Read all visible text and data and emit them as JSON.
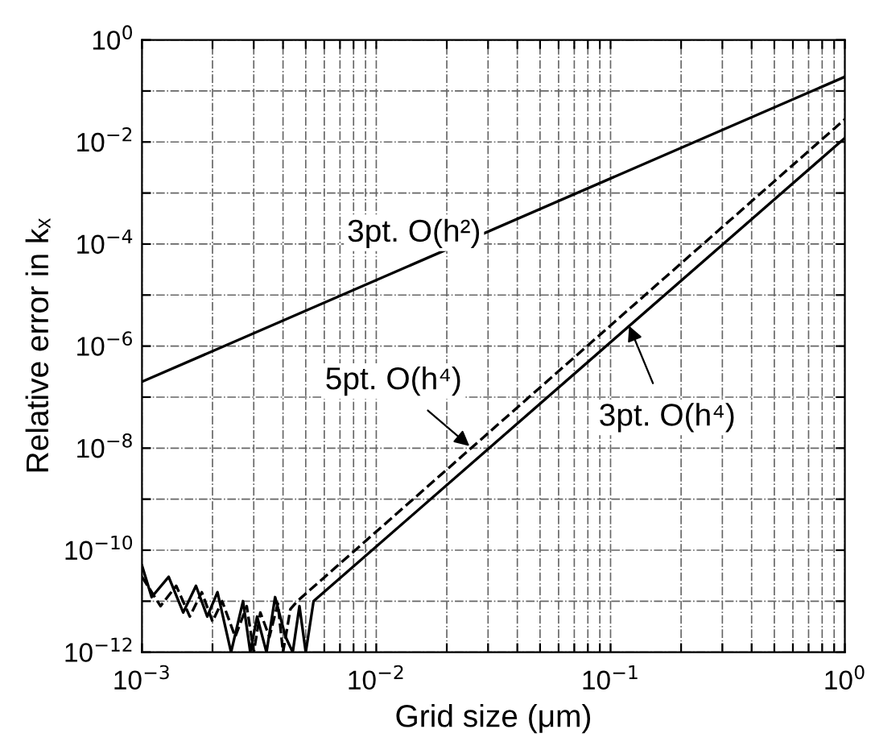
{
  "chart_data": {
    "type": "line",
    "xlabel": "Grid size (μm)",
    "ylabel": "Relative error in kₓ",
    "log": "xy",
    "xlim": [
      0.001,
      1
    ],
    "ylim": [
      1e-12,
      1
    ],
    "xticks": [
      {
        "value": 0.001,
        "label": "10$^{−3}$"
      },
      {
        "value": 0.002,
        "label": null
      },
      {
        "value": 0.003,
        "label": null
      },
      {
        "value": 0.004,
        "label": null
      },
      {
        "value": 0.005,
        "label": null
      },
      {
        "value": 0.006,
        "label": null
      },
      {
        "value": 0.007,
        "label": null
      },
      {
        "value": 0.008,
        "label": null
      },
      {
        "value": 0.009,
        "label": null
      },
      {
        "value": 0.01,
        "label": "10$^{−2}$"
      },
      {
        "value": 0.02,
        "label": null
      },
      {
        "value": 0.03,
        "label": null
      },
      {
        "value": 0.04,
        "label": null
      },
      {
        "value": 0.05,
        "label": null
      },
      {
        "value": 0.06,
        "label": null
      },
      {
        "value": 0.07,
        "label": null
      },
      {
        "value": 0.08,
        "label": null
      },
      {
        "value": 0.09,
        "label": null
      },
      {
        "value": 0.1,
        "label": "10$^{−1}$"
      },
      {
        "value": 0.2,
        "label": null
      },
      {
        "value": 0.3,
        "label": null
      },
      {
        "value": 0.4,
        "label": null
      },
      {
        "value": 0.5,
        "label": null
      },
      {
        "value": 0.6,
        "label": null
      },
      {
        "value": 0.7,
        "label": null
      },
      {
        "value": 0.8,
        "label": null
      },
      {
        "value": 0.9,
        "label": null
      },
      {
        "value": 1,
        "label": "10$^{0}$"
      }
    ],
    "yticks": [
      {
        "value": 1e-12,
        "label": "10$^{−12}$"
      },
      {
        "value": 1e-11,
        "label": null
      },
      {
        "value": 1e-10,
        "label": "10$^{−10}$"
      },
      {
        "value": 1e-09,
        "label": null
      },
      {
        "value": 1e-08,
        "label": "10$^{−8}$"
      },
      {
        "value": 1e-07,
        "label": null
      },
      {
        "value": 1e-06,
        "label": "10$^{−6}$"
      },
      {
        "value": 1e-05,
        "label": null
      },
      {
        "value": 0.0001,
        "label": "10$^{−4}$"
      },
      {
        "value": 0.001,
        "label": null
      },
      {
        "value": 0.01,
        "label": "10$^{−2}$"
      },
      {
        "value": 0.1,
        "label": null
      },
      {
        "value": 1,
        "label": "10$^{0}$"
      }
    ],
    "grid": true,
    "legend": false,
    "marker": "none",
    "series": [
      {
        "color": "#000000",
        "line_style": "solid",
        "x": [
          0.001,
          1
        ],
        "values": [
          2e-07,
          0.19
        ]
      },
      {
        "color": "#000000",
        "line_style": "dashed",
        "x": [
          0.001,
          0.0012,
          0.0014,
          0.0016,
          0.0018,
          0.002,
          0.0022,
          0.0025,
          0.0028,
          0.003,
          0.0032,
          0.0035,
          0.0038,
          0.004,
          0.0043,
          0.0046,
          1
        ],
        "values": [
          3e-11,
          8e-12,
          2e-11,
          5e-12,
          1.5e-11,
          4e-12,
          1e-11,
          2e-12,
          8e-12,
          1e-12,
          6e-12,
          2e-12,
          9e-12,
          1e-12,
          7e-12,
          1e-11,
          0.028
        ]
      },
      {
        "color": "#000000",
        "line_style": "solid",
        "x": [
          0.001,
          0.0011,
          0.0013,
          0.0015,
          0.0017,
          0.0019,
          0.0021,
          0.0024,
          0.0027,
          0.0029,
          0.0031,
          0.0034,
          0.0037,
          0.0041,
          0.0044,
          0.0047,
          0.005,
          0.0054,
          1
        ],
        "values": [
          5e-11,
          1.2e-11,
          3e-11,
          6e-12,
          2e-11,
          5e-12,
          1.5e-11,
          1e-12,
          1e-11,
          1e-12,
          5e-12,
          1e-12,
          1.2e-11,
          2e-12,
          1e-12,
          8e-12,
          1e-12,
          1e-11,
          0.012
        ]
      }
    ],
    "annotations": [
      "3pt. O(h²)",
      {
        "text": "5pt. O(h⁴)",
        "x": 0.025,
        "y": 1.1e-08
      },
      {
        "text": "3pt. O(h⁴)",
        "x": 0.12,
        "y": 2.5e-06
      }
    ]
  }
}
